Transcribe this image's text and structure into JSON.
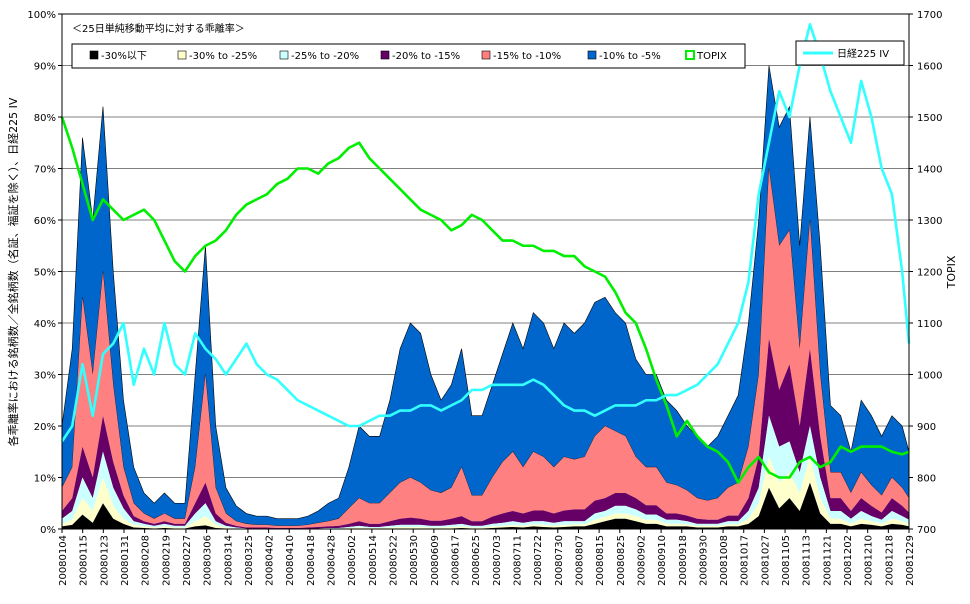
{
  "chart_data": {
    "type": "area",
    "title": "＜25日単純移動平均に対する乖離率＞",
    "ylabel_left": "各乖離率における銘柄数／全銘柄数（名証、福証を除く）、日経225 IV",
    "ylabel_right": "TOPIX",
    "ylim_left": [
      0,
      100
    ],
    "ylim_right": [
      700,
      1700
    ],
    "left_ticks": [
      "0%",
      "10%",
      "20%",
      "30%",
      "40%",
      "50%",
      "60%",
      "70%",
      "80%",
      "90%",
      "100%"
    ],
    "right_ticks": [
      "700",
      "800",
      "900",
      "1000",
      "1100",
      "1200",
      "1300",
      "1400",
      "1500",
      "1600",
      "1700"
    ],
    "x_tick_labels": [
      "20080104",
      "20080115",
      "20080123",
      "20080131",
      "20080208",
      "20080219",
      "20080227",
      "20080306",
      "20080314",
      "20080325",
      "20080402",
      "20080410",
      "20080418",
      "20080428",
      "20080502",
      "20080514",
      "20080522",
      "20080530",
      "20080609",
      "20080617",
      "20080625",
      "20080703",
      "20080711",
      "20080722",
      "20080730",
      "20080807",
      "20080815",
      "20080825",
      "20080902",
      "20080910",
      "20080918",
      "20080930",
      "20081008",
      "20081017",
      "20081027",
      "20081105",
      "20081113",
      "20081121",
      "20081202",
      "20081210",
      "20081218",
      "20081229"
    ],
    "grid": true,
    "legend_position": "top",
    "stacked_series": [
      {
        "name": "-30%以下",
        "color": "#000000"
      },
      {
        "name": "-30% to -25%",
        "color": "#ffffcc"
      },
      {
        "name": "-25% to -20%",
        "color": "#ccffff"
      },
      {
        "name": "-20% to -15%",
        "color": "#660066"
      },
      {
        "name": "-15% to -10%",
        "color": "#ff8080"
      },
      {
        "name": "-10% to -5%",
        "color": "#0066cc"
      }
    ],
    "stacked_x": [
      0,
      3,
      6,
      9,
      12,
      15,
      18,
      21,
      24,
      27,
      30,
      33,
      36,
      39,
      42,
      45,
      48,
      51,
      54,
      57,
      60,
      63,
      66,
      69,
      72,
      75,
      78,
      81,
      84,
      87,
      90,
      93,
      96,
      99,
      102,
      105,
      108,
      111,
      114,
      117,
      120,
      123,
      126,
      129,
      132,
      135,
      138,
      141,
      144,
      147,
      150,
      153,
      156,
      159,
      162,
      165,
      168,
      171,
      174,
      177,
      180,
      183,
      186,
      189,
      192,
      195,
      198,
      201,
      204,
      207,
      210,
      213,
      216,
      219,
      222,
      225,
      228,
      231,
      234,
      237,
      240,
      243,
      246,
      248
    ],
    "cumulative_levels": [
      [
        0.5,
        0.8,
        2.8,
        1.2,
        5.0,
        2.0,
        1.0,
        0.3,
        0.2,
        0.1,
        0.2,
        0.1,
        0.1,
        0.5,
        0.7,
        0.2,
        0.1,
        0.0,
        0.0,
        0.0,
        0.0,
        0.0,
        0.0,
        0.0,
        0.0,
        0.0,
        0.0,
        0.0,
        0.0,
        0.0,
        0.0,
        0.0,
        0.0,
        0.0,
        0.0,
        0.0,
        0.0,
        0.0,
        0.1,
        0.2,
        0.1,
        0.1,
        0.2,
        0.3,
        0.4,
        0.3,
        0.5,
        0.4,
        0.3,
        0.4,
        0.5,
        0.5,
        1.0,
        1.5,
        2.0,
        2.0,
        1.5,
        1.0,
        1.0,
        0.5,
        0.5,
        0.5,
        0.3,
        0.3,
        0.3,
        0.5,
        0.5,
        1.0,
        2.5,
        8.0,
        4.0,
        6.0,
        3.5,
        9.0,
        3.0,
        1.0,
        1.0,
        0.5,
        1.0,
        0.8,
        0.5,
        1.0,
        0.8,
        0.5
      ],
      [
        1.0,
        1.8,
        6.0,
        3.5,
        10.0,
        4.5,
        2.0,
        0.8,
        0.5,
        0.3,
        0.5,
        0.3,
        0.3,
        1.5,
        2.5,
        0.8,
        0.3,
        0.1,
        0.0,
        0.0,
        0.0,
        0.0,
        0.0,
        0.0,
        0.0,
        0.0,
        0.0,
        0.1,
        0.2,
        0.3,
        0.2,
        0.2,
        0.3,
        0.4,
        0.4,
        0.4,
        0.3,
        0.3,
        0.4,
        0.5,
        0.3,
        0.3,
        0.5,
        0.6,
        0.8,
        0.6,
        0.9,
        0.8,
        0.6,
        0.8,
        0.9,
        0.9,
        1.8,
        2.3,
        3.0,
        3.0,
        2.5,
        1.8,
        1.8,
        1.0,
        1.0,
        0.9,
        0.6,
        0.6,
        0.6,
        0.9,
        0.9,
        2.0,
        5.0,
        14.0,
        9.0,
        11.0,
        7.0,
        14.0,
        6.0,
        2.0,
        2.0,
        1.0,
        2.0,
        1.5,
        1.0,
        2.0,
        1.5,
        1.0
      ],
      [
        2.0,
        3.5,
        10.0,
        6.0,
        15.0,
        8.0,
        4.0,
        1.5,
        1.0,
        0.6,
        1.0,
        0.6,
        0.6,
        3.0,
        5.0,
        1.5,
        0.6,
        0.3,
        0.1,
        0.1,
        0.1,
        0.1,
        0.1,
        0.1,
        0.1,
        0.1,
        0.2,
        0.2,
        0.4,
        0.6,
        0.4,
        0.4,
        0.6,
        0.8,
        0.8,
        0.8,
        0.6,
        0.6,
        0.8,
        1.0,
        0.6,
        0.6,
        1.0,
        1.2,
        1.5,
        1.2,
        1.5,
        1.5,
        1.2,
        1.5,
        1.5,
        1.5,
        3.0,
        3.5,
        4.5,
        4.5,
        3.8,
        2.8,
        2.8,
        1.8,
        1.8,
        1.5,
        1.0,
        1.0,
        1.0,
        1.5,
        1.5,
        3.5,
        8.0,
        22.0,
        16.0,
        17.0,
        11.0,
        20.0,
        10.0,
        3.5,
        3.5,
        2.0,
        3.5,
        2.5,
        1.8,
        3.5,
        2.5,
        1.8
      ],
      [
        3.5,
        6.0,
        16.0,
        10.0,
        22.0,
        13.0,
        6.5,
        2.5,
        1.5,
        1.0,
        1.5,
        1.0,
        1.0,
        5.0,
        9.0,
        3.0,
        1.2,
        0.6,
        0.3,
        0.3,
        0.3,
        0.2,
        0.2,
        0.2,
        0.3,
        0.4,
        0.5,
        0.6,
        1.0,
        1.5,
        1.0,
        1.0,
        1.5,
        2.0,
        2.2,
        2.0,
        1.6,
        1.6,
        2.0,
        2.5,
        1.5,
        1.5,
        2.4,
        3.0,
        3.5,
        3.0,
        3.6,
        3.6,
        3.0,
        3.6,
        3.8,
        3.8,
        5.5,
        6.0,
        7.0,
        7.0,
        6.0,
        4.6,
        4.6,
        3.0,
        3.0,
        2.6,
        2.0,
        1.8,
        1.8,
        2.6,
        2.6,
        6.0,
        14.0,
        37.0,
        27.0,
        32.0,
        20.0,
        35.0,
        18.0,
        6.0,
        6.0,
        3.5,
        6.0,
        4.5,
        3.2,
        6.0,
        4.5,
        3.2
      ],
      [
        8.0,
        12.0,
        45.0,
        30.0,
        50.0,
        28.0,
        12.0,
        5.0,
        3.0,
        2.0,
        3.0,
        2.0,
        2.0,
        12.0,
        30.0,
        8.0,
        3.0,
        1.5,
        1.0,
        0.8,
        0.8,
        0.6,
        0.6,
        0.6,
        0.8,
        1.2,
        1.5,
        2.0,
        4.0,
        6.0,
        5.0,
        5.0,
        7.0,
        9.0,
        10.0,
        9.0,
        7.5,
        7.0,
        8.0,
        12.0,
        6.5,
        6.5,
        10.0,
        13.0,
        15.0,
        12.0,
        15.0,
        14.0,
        12.0,
        14.0,
        13.5,
        14.0,
        18.0,
        20.0,
        19.0,
        18.0,
        14.0,
        12.0,
        12.0,
        9.0,
        8.5,
        7.5,
        6.0,
        5.5,
        6.0,
        8.0,
        9.0,
        16.0,
        30.0,
        70.0,
        55.0,
        58.0,
        35.0,
        60.0,
        30.0,
        11.0,
        11.0,
        7.0,
        11.0,
        8.5,
        6.5,
        10.0,
        8.0,
        6.0
      ],
      [
        20.0,
        35.0,
        76.0,
        60.0,
        82.0,
        50.0,
        25.0,
        12.0,
        7.0,
        5.0,
        7.0,
        5.0,
        5.0,
        30.0,
        55.0,
        20.0,
        8.0,
        4.5,
        3.0,
        2.5,
        2.5,
        2.0,
        2.0,
        2.0,
        2.5,
        3.5,
        5.0,
        6.0,
        12.0,
        20.0,
        18.0,
        18.0,
        25.0,
        35.0,
        40.0,
        38.0,
        30.0,
        25.0,
        28.0,
        35.0,
        22.0,
        22.0,
        28.0,
        34.0,
        40.0,
        35.0,
        42.0,
        40.0,
        35.0,
        40.0,
        38.0,
        40.0,
        44.0,
        45.0,
        42.0,
        40.0,
        33.0,
        30.0,
        30.0,
        25.0,
        23.0,
        20.0,
        18.0,
        16.0,
        18.0,
        22.0,
        26.0,
        40.0,
        60.0,
        90.0,
        78.0,
        82.0,
        55.0,
        80.0,
        55.0,
        24.0,
        22.0,
        15.0,
        25.0,
        22.0,
        18.0,
        22.0,
        20.0,
        15.0
      ]
    ],
    "iv_series": {
      "name": "日経225 IV",
      "color": "#33ffff",
      "x": [
        0,
        3,
        6,
        9,
        12,
        15,
        18,
        21,
        24,
        27,
        30,
        33,
        36,
        39,
        42,
        45,
        48,
        51,
        54,
        57,
        60,
        63,
        66,
        69,
        72,
        75,
        78,
        81,
        84,
        87,
        90,
        93,
        96,
        99,
        102,
        105,
        108,
        111,
        114,
        117,
        120,
        123,
        126,
        129,
        132,
        135,
        138,
        141,
        144,
        147,
        150,
        153,
        156,
        159,
        162,
        165,
        168,
        171,
        174,
        177,
        180,
        183,
        186,
        189,
        192,
        195,
        198,
        201,
        204,
        207,
        210,
        213,
        216,
        219,
        222,
        225,
        228,
        231,
        234,
        237,
        240,
        243,
        246,
        248
      ],
      "values": [
        17,
        20,
        32,
        22,
        34,
        36,
        40,
        28,
        35,
        30,
        40,
        32,
        30,
        38,
        35,
        33,
        30,
        33,
        36,
        32,
        30,
        29,
        27,
        25,
        24,
        23,
        22,
        21,
        20,
        20,
        21,
        22,
        22,
        23,
        23,
        24,
        24,
        23,
        24,
        25,
        27,
        27,
        28,
        28,
        28,
        28,
        29,
        28,
        26,
        24,
        23,
        23,
        22,
        23,
        24,
        24,
        24,
        25,
        25,
        26,
        26,
        27,
        28,
        30,
        32,
        36,
        40,
        48,
        65,
        75,
        85,
        80,
        90,
        98,
        92,
        85,
        80,
        75,
        87,
        80,
        70,
        65,
        50,
        36
      ]
    },
    "topix_series": {
      "name": "TOPIX",
      "color": "#00ee00",
      "x": [
        0,
        3,
        6,
        9,
        12,
        15,
        18,
        21,
        24,
        27,
        30,
        33,
        36,
        39,
        42,
        45,
        48,
        51,
        54,
        57,
        60,
        63,
        66,
        69,
        72,
        75,
        78,
        81,
        84,
        87,
        90,
        93,
        96,
        99,
        102,
        105,
        108,
        111,
        114,
        117,
        120,
        123,
        126,
        129,
        132,
        135,
        138,
        141,
        144,
        147,
        150,
        153,
        156,
        159,
        162,
        165,
        168,
        171,
        174,
        177,
        180,
        183,
        186,
        189,
        192,
        195,
        198,
        201,
        204,
        207,
        210,
        213,
        216,
        219,
        222,
        225,
        228,
        231,
        234,
        237,
        240,
        243,
        246,
        248
      ],
      "values": [
        1500,
        1440,
        1370,
        1300,
        1340,
        1320,
        1300,
        1310,
        1320,
        1300,
        1260,
        1220,
        1200,
        1230,
        1250,
        1260,
        1280,
        1310,
        1330,
        1340,
        1350,
        1370,
        1380,
        1400,
        1400,
        1390,
        1410,
        1420,
        1440,
        1450,
        1420,
        1400,
        1380,
        1360,
        1340,
        1320,
        1310,
        1300,
        1280,
        1290,
        1310,
        1300,
        1280,
        1260,
        1260,
        1250,
        1250,
        1240,
        1240,
        1230,
        1230,
        1210,
        1200,
        1190,
        1160,
        1120,
        1100,
        1050,
        990,
        940,
        880,
        910,
        880,
        860,
        850,
        830,
        790,
        820,
        840,
        810,
        800,
        800,
        830,
        840,
        820,
        830,
        860,
        850,
        860,
        860,
        860,
        850,
        845,
        850
      ]
    }
  }
}
